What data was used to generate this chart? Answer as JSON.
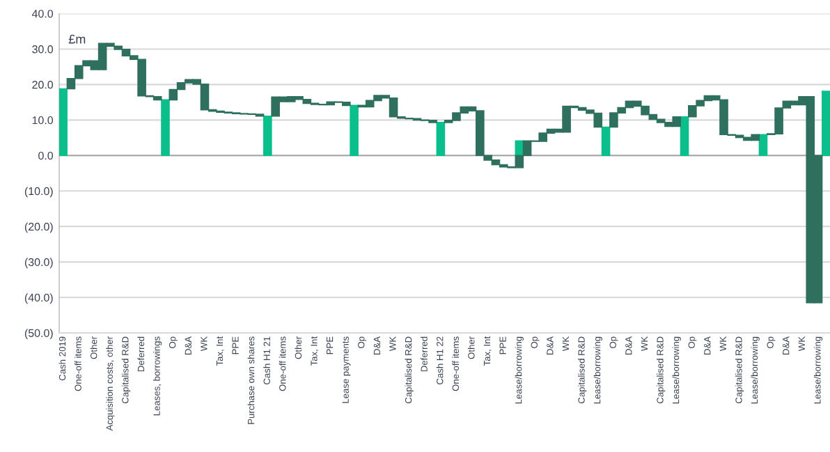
{
  "chart_data": {
    "type": "bar",
    "categories": [
      "Cash 2019",
      null,
      "One-off items",
      null,
      "Other",
      null,
      "Acquisition costs, other",
      null,
      "Capitalised R&D",
      null,
      "Deferred",
      null,
      "Leases, borrowings",
      null,
      "Op",
      null,
      "D&A",
      null,
      "WK",
      null,
      "Tax, Int",
      null,
      "PPE",
      null,
      "Purchase own shares",
      null,
      "Cash H1 21",
      null,
      "One-off items",
      null,
      "Other",
      null,
      "Tax, Int",
      null,
      "PPE",
      null,
      "Lease payments",
      null,
      "Op",
      null,
      "D&A",
      null,
      "WK",
      null,
      "Capitalised R&D",
      null,
      "Deferred",
      null,
      "Cash H1 22",
      null,
      "One-off items",
      null,
      "Other",
      null,
      "Tax, Int",
      null,
      "PPE",
      null,
      "Lease/borrowing",
      null,
      "Op",
      null,
      "D&A",
      null,
      "WK",
      null,
      "Capitalised R&D",
      null,
      "Lease/borrowing",
      null,
      "Op",
      null,
      "D&A",
      null,
      "WK",
      null,
      "Capitalised R&D",
      null,
      "Lease/borrowing",
      null,
      "Op",
      null,
      "D&A",
      null,
      "WK",
      null,
      "Capitalised R&D",
      null,
      "Lease/borrowing",
      null,
      "Op",
      null,
      "D&A",
      null,
      "WK",
      null,
      "Lease/borrowing",
      null
    ],
    "series": [
      {
        "color": "#0bbf8c",
        "values": [
          18.8,
          null,
          null,
          null,
          null,
          null,
          null,
          null,
          null,
          null,
          null,
          null,
          null,
          15.7,
          null,
          null,
          null,
          null,
          null,
          null,
          null,
          null,
          null,
          null,
          null,
          null,
          11.1,
          null,
          null,
          null,
          null,
          null,
          null,
          null,
          null,
          null,
          null,
          14.1,
          null,
          null,
          null,
          null,
          null,
          null,
          null,
          null,
          null,
          null,
          9.3,
          null,
          null,
          null,
          null,
          null,
          null,
          null,
          null,
          null,
          4.1,
          null,
          null,
          null,
          null,
          null,
          null,
          null,
          null,
          null,
          null,
          8.0,
          null,
          null,
          null,
          null,
          null,
          null,
          null,
          null,
          null,
          10.9,
          null,
          null,
          null,
          null,
          null,
          null,
          null,
          null,
          null,
          5.9,
          null,
          null,
          null,
          null,
          null,
          null,
          null,
          18.1
        ]
      },
      {
        "color": "#2f6f5e",
        "base": [
          null,
          18.8,
          21.7,
          25.3,
          26.7,
          24.2,
          31.6,
          30.8,
          29.9,
          28.1,
          27.1,
          16.8,
          16.6,
          null,
          15.7,
          18.6,
          20.5,
          21.4,
          20.1,
          12.9,
          12.5,
          12.2,
          12.0,
          11.8,
          11.7,
          11.6,
          null,
          11.1,
          16.5,
          15.2,
          16.6,
          15.8,
          14.7,
          14.4,
          14.3,
          15.1,
          15.0,
          null,
          14.1,
          13.7,
          15.5,
          16.9,
          16.2,
          10.9,
          10.5,
          10.4,
          10.0,
          9.9,
          null,
          9.3,
          9.9,
          12.0,
          13.7,
          12.6,
          0,
          -1.3,
          -2.6,
          -3.2,
          -3.4,
          0,
          4.1,
          4.0,
          6.3,
          7.4,
          6.6,
          13.9,
          13.5,
          12.8,
          11.9,
          null,
          8.0,
          12.0,
          13.5,
          15.3,
          13.9,
          11.5,
          10.2,
          9.3,
          8.2,
          null,
          10.9,
          14.0,
          15.5,
          16.8,
          15.7,
          5.9,
          5.7,
          5.1,
          4.3,
          null,
          5.9,
          6.1,
          13.4,
          15.3,
          14.3,
          16.6,
          -41.5,
          null
        ],
        "values": [
          null,
          2.9,
          3.6,
          1.4,
          -2.5,
          7.4,
          -0.8,
          -0.9,
          -1.8,
          -1.0,
          -10.3,
          -0.2,
          -0.9,
          null,
          2.9,
          1.9,
          0.9,
          -1.3,
          -7.2,
          -0.4,
          -0.3,
          -0.2,
          -0.2,
          -0.1,
          -0.1,
          -0.5,
          null,
          5.4,
          -1.3,
          1.4,
          -0.8,
          -1.1,
          -0.3,
          -0.1,
          0.8,
          -0.1,
          -0.9,
          null,
          -0.4,
          1.8,
          1.4,
          -0.7,
          -5.3,
          -0.4,
          -0.1,
          -0.4,
          -0.1,
          -0.6,
          null,
          0.6,
          2.1,
          1.7,
          -1.1,
          -12.6,
          -1.3,
          -1.3,
          -0.6,
          -0.2,
          3.4,
          4.1,
          -0.1,
          2.3,
          1.1,
          -0.8,
          7.3,
          -0.4,
          -0.7,
          -0.9,
          -3.9,
          null,
          4.0,
          1.5,
          1.8,
          -1.4,
          -2.4,
          -1.3,
          -0.9,
          -1.1,
          2.7,
          null,
          3.1,
          1.5,
          1.3,
          -1.1,
          -9.8,
          -0.2,
          -0.6,
          -0.8,
          1.6,
          null,
          0.2,
          7.3,
          1.9,
          -1.0,
          2.3,
          -58.1,
          41.5,
          null
        ]
      }
    ],
    "ylim": [
      -50,
      40
    ],
    "yticks": [
      {
        "value": -50,
        "label": "(50.0)"
      },
      {
        "value": -40,
        "label": "(40.0)"
      },
      {
        "value": -30,
        "label": "(30.0)"
      },
      {
        "value": -20,
        "label": "(20.0)"
      },
      {
        "value": -10,
        "label": "(10.0)"
      },
      {
        "value": 0,
        "label": "0.0"
      },
      {
        "value": 10,
        "label": "10.0"
      },
      {
        "value": 20,
        "label": "20.0"
      },
      {
        "value": 30,
        "label": "30.0"
      },
      {
        "value": 40,
        "label": "40.0"
      }
    ],
    "annotations": [
      "£m"
    ],
    "grid": "y"
  }
}
